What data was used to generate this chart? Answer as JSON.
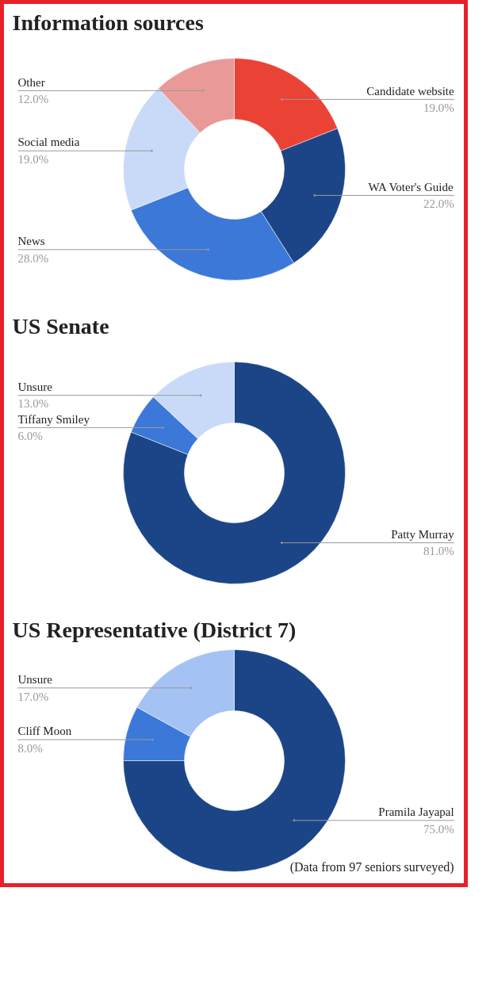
{
  "chart_data": [
    {
      "type": "donut",
      "title": "Information sources",
      "categories": [
        "Candidate website",
        "WA Voter's Guide",
        "News",
        "Social media",
        "Other"
      ],
      "values": [
        19,
        22,
        28,
        19,
        12
      ],
      "value_labels": [
        "19.0%",
        "22.0%",
        "28.0%",
        "19.0%",
        "12.0%"
      ],
      "colors": [
        "#ea4335",
        "#1c4587",
        "#3c78d8",
        "#c9daf8",
        "#ea9999"
      ]
    },
    {
      "type": "donut",
      "title": "US Senate",
      "categories": [
        "Patty Murray",
        "Tiffany Smiley",
        "Unsure"
      ],
      "values": [
        81,
        6,
        13
      ],
      "value_labels": [
        "81.0%",
        "6.0%",
        "13.0%"
      ],
      "colors": [
        "#1c4587",
        "#3c78d8",
        "#c9daf8"
      ]
    },
    {
      "type": "donut",
      "title": "US Representative (District 7)",
      "categories": [
        "Pramila Jayapal",
        "Cliff Moon",
        "Unsure"
      ],
      "values": [
        75,
        8,
        17
      ],
      "value_labels": [
        "75.0%",
        "8.0%",
        "17.0%"
      ],
      "colors": [
        "#1c4587",
        "#3c78d8",
        "#a4c2f4"
      ],
      "annotations": [
        "(Data from 97 seniors surveyed)"
      ]
    }
  ]
}
